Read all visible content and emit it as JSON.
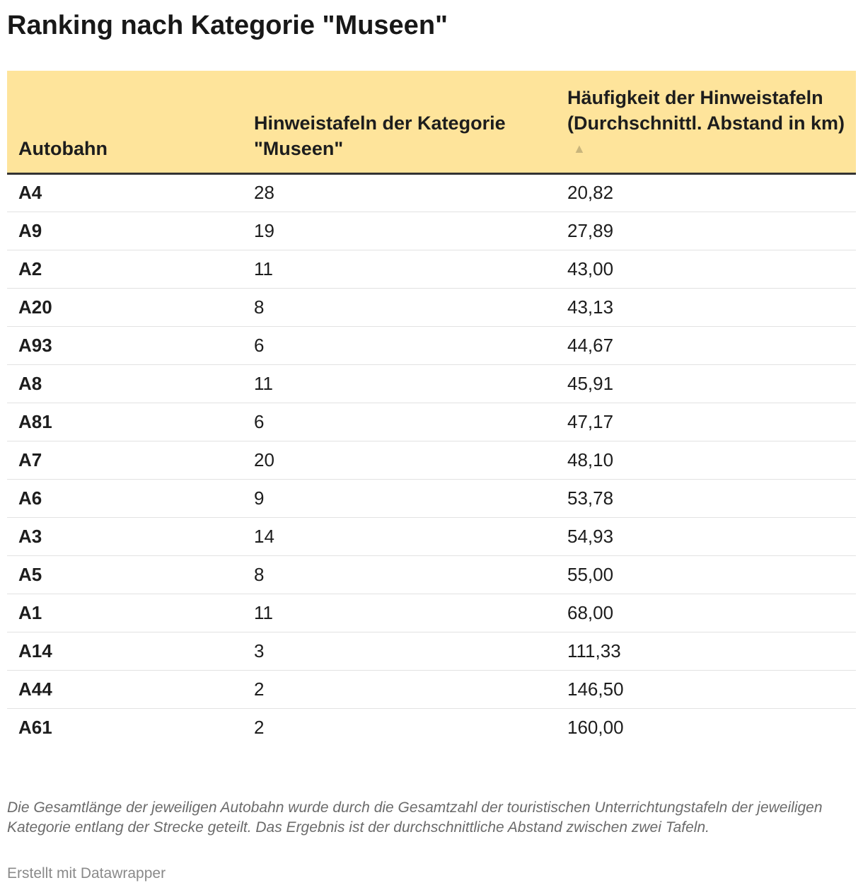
{
  "title": "Ranking nach Kategorie \"Museen\"",
  "headers": {
    "col1": "Autobahn",
    "col2": "Hinweistafeln der Kategorie \"Museen\"",
    "col3": "Häufigkeit der Hinweistafeln (Durchschnittl. Abstand in km)",
    "sort_icon": "▲"
  },
  "colors": {
    "header_background": "#fee49b",
    "header_rule": "#333333",
    "sort_icon": "#c9b57c"
  },
  "chart_data": {
    "type": "table",
    "title": "Ranking nach Kategorie \"Museen\"",
    "columns": [
      "Autobahn",
      "Hinweistafeln der Kategorie \"Museen\"",
      "Häufigkeit der Hinweistafeln (Durchschnittl. Abstand in km)"
    ],
    "sorted_by": "Häufigkeit der Hinweistafeln (Durchschnittl. Abstand in km)",
    "sort_order": "ascending",
    "rows": [
      {
        "road": "A4",
        "count": "28",
        "distance": "20,82"
      },
      {
        "road": "A9",
        "count": "19",
        "distance": "27,89"
      },
      {
        "road": "A2",
        "count": "11",
        "distance": "43,00"
      },
      {
        "road": "A20",
        "count": "8",
        "distance": "43,13"
      },
      {
        "road": "A93",
        "count": "6",
        "distance": "44,67"
      },
      {
        "road": "A8",
        "count": "11",
        "distance": "45,91"
      },
      {
        "road": "A81",
        "count": "6",
        "distance": "47,17"
      },
      {
        "road": "A7",
        "count": "20",
        "distance": "48,10"
      },
      {
        "road": "A6",
        "count": "9",
        "distance": "53,78"
      },
      {
        "road": "A3",
        "count": "14",
        "distance": "54,93"
      },
      {
        "road": "A5",
        "count": "8",
        "distance": "55,00"
      },
      {
        "road": "A1",
        "count": "11",
        "distance": "68,00"
      },
      {
        "road": "A14",
        "count": "3",
        "distance": "111,33"
      },
      {
        "road": "A44",
        "count": "2",
        "distance": "146,50"
      },
      {
        "road": "A61",
        "count": "2",
        "distance": "160,00"
      }
    ]
  },
  "footer": {
    "note": "Die Gesamtlänge der jeweiligen Autobahn wurde durch die Gesamtzahl der touristischen Unterrichtungstafeln der jeweiligen Kategorie entlang der Strecke geteilt. Das Ergebnis ist der durchschnittliche Abstand zwischen zwei Tafeln.",
    "credit": "Erstellt mit Datawrapper"
  }
}
